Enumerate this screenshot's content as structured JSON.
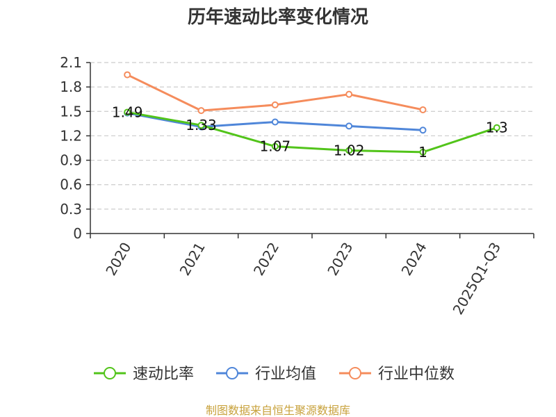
{
  "chart_data": {
    "type": "line",
    "title": "历年速动比率变化情况",
    "categories": [
      "2020",
      "2021",
      "2022",
      "2023",
      "2024",
      "2025Q1-Q3"
    ],
    "ylim": [
      0,
      2.1
    ],
    "yticks": [
      "0",
      "0.3",
      "0.6",
      "0.9",
      "1.2",
      "1.5",
      "1.8",
      "2.1"
    ],
    "grid": true,
    "legend_position": "bottom",
    "series": [
      {
        "name": "速动比率",
        "color": "#52c41a",
        "values": [
          1.49,
          1.33,
          1.07,
          1.02,
          1.0,
          1.3
        ],
        "labels": [
          "1.49",
          "1.33",
          "1.07",
          "1.02",
          "1",
          "1.3"
        ]
      },
      {
        "name": "行业均值",
        "color": "#4f86d9",
        "values": [
          1.48,
          1.31,
          1.37,
          1.32,
          1.27,
          null
        ]
      },
      {
        "name": "行业中位数",
        "color": "#f58c5c",
        "values": [
          1.95,
          1.51,
          1.58,
          1.71,
          1.52,
          null
        ]
      }
    ]
  },
  "footer": "制图数据来自恒生聚源数据库"
}
